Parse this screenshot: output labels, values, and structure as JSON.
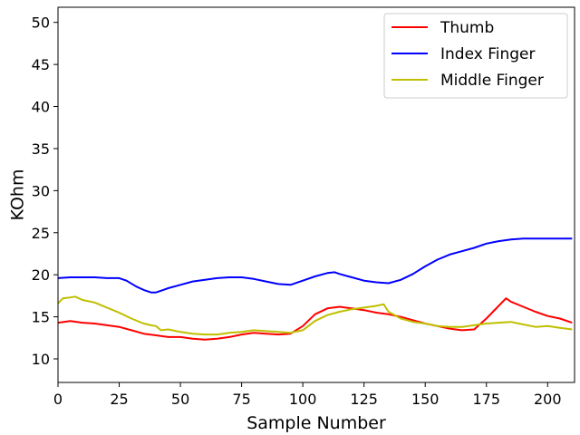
{
  "chart_data": {
    "type": "line",
    "xlabel": "Sample Number",
    "ylabel": "KOhm",
    "xlim": [
      0,
      211
    ],
    "ylim": [
      7.2,
      51.8
    ],
    "xticks": [
      0,
      25,
      50,
      75,
      100,
      125,
      150,
      175,
      200
    ],
    "yticks": [
      10,
      15,
      20,
      25,
      30,
      35,
      40,
      45,
      50
    ],
    "grid": false,
    "legend_position": "top-right",
    "series": [
      {
        "name": "Thumb",
        "color": "#ff0000",
        "x": [
          0,
          5,
          10,
          15,
          20,
          25,
          30,
          35,
          40,
          45,
          50,
          55,
          60,
          65,
          70,
          75,
          80,
          85,
          90,
          95,
          100,
          105,
          110,
          115,
          120,
          125,
          130,
          135,
          140,
          145,
          150,
          155,
          160,
          165,
          170,
          175,
          180,
          183,
          185,
          190,
          195,
          200,
          205,
          210
        ],
        "y": [
          14.3,
          14.5,
          14.3,
          14.2,
          14.0,
          13.8,
          13.4,
          13.0,
          12.8,
          12.6,
          12.6,
          12.4,
          12.3,
          12.4,
          12.6,
          12.9,
          13.1,
          13.0,
          12.9,
          13.0,
          13.9,
          15.3,
          16.0,
          16.2,
          16.0,
          15.8,
          15.5,
          15.3,
          15.0,
          14.6,
          14.2,
          13.9,
          13.6,
          13.4,
          13.5,
          14.8,
          16.3,
          17.2,
          16.8,
          16.2,
          15.6,
          15.1,
          14.8,
          14.3
        ]
      },
      {
        "name": "Index Finger",
        "color": "#0000ff",
        "x": [
          0,
          5,
          10,
          15,
          20,
          25,
          28,
          32,
          35,
          38,
          40,
          43,
          45,
          50,
          55,
          60,
          65,
          70,
          75,
          80,
          85,
          90,
          95,
          100,
          105,
          110,
          113,
          115,
          120,
          125,
          130,
          135,
          140,
          145,
          150,
          155,
          160,
          165,
          170,
          175,
          180,
          185,
          190,
          195,
          200,
          205,
          210
        ],
        "y": [
          19.6,
          19.7,
          19.7,
          19.7,
          19.6,
          19.6,
          19.3,
          18.6,
          18.2,
          17.9,
          17.9,
          18.2,
          18.4,
          18.8,
          19.2,
          19.4,
          19.6,
          19.7,
          19.7,
          19.5,
          19.2,
          18.9,
          18.8,
          19.3,
          19.8,
          20.2,
          20.3,
          20.1,
          19.7,
          19.3,
          19.1,
          19.0,
          19.4,
          20.1,
          21.0,
          21.8,
          22.4,
          22.8,
          23.2,
          23.7,
          24.0,
          24.2,
          24.3,
          24.3,
          24.3,
          24.3,
          24.3
        ]
      },
      {
        "name": "Middle Finger",
        "color": "#bfbf00",
        "x": [
          0,
          2,
          5,
          7,
          10,
          15,
          20,
          25,
          30,
          35,
          38,
          40,
          42,
          45,
          50,
          55,
          60,
          65,
          70,
          75,
          80,
          85,
          90,
          95,
          100,
          105,
          110,
          115,
          120,
          125,
          130,
          133,
          135,
          140,
          145,
          150,
          155,
          160,
          165,
          170,
          175,
          180,
          185,
          190,
          195,
          200,
          205,
          210
        ],
        "y": [
          16.6,
          17.2,
          17.3,
          17.4,
          17.0,
          16.7,
          16.1,
          15.5,
          14.8,
          14.2,
          14.0,
          13.9,
          13.4,
          13.5,
          13.2,
          13.0,
          12.9,
          12.9,
          13.1,
          13.2,
          13.4,
          13.3,
          13.2,
          13.1,
          13.4,
          14.5,
          15.2,
          15.6,
          15.9,
          16.1,
          16.3,
          16.5,
          15.6,
          14.8,
          14.4,
          14.2,
          13.9,
          13.8,
          13.8,
          14.0,
          14.2,
          14.3,
          14.4,
          14.1,
          13.8,
          13.9,
          13.7,
          13.5
        ]
      }
    ]
  }
}
